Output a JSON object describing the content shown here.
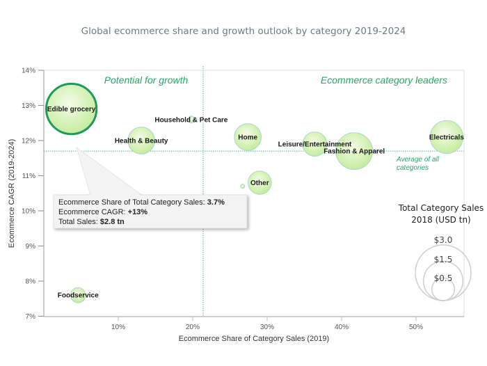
{
  "chart_data": {
    "type": "scatter",
    "subtype": "bubble",
    "title": "Global ecommerce share and growth outlook by category 2019-2024",
    "xlabel": "Ecommerce Share of Category Sales (2019)",
    "ylabel": "Ecommerce CAGR (2019-2024)",
    "xlim": [
      0,
      57
    ],
    "ylim": [
      7,
      14
    ],
    "x_ticks": [
      10,
      20,
      30,
      40,
      50
    ],
    "x_tick_labels": [
      "10%",
      "20%",
      "30%",
      "40%",
      "50%"
    ],
    "y_ticks": [
      7,
      8,
      9,
      10,
      11,
      12,
      13,
      14
    ],
    "y_tick_labels": [
      "7%",
      "8%",
      "9%",
      "10%",
      "11%",
      "12%",
      "13%",
      "14%"
    ],
    "grid": false,
    "reference_lines": {
      "x_average": 21.4,
      "y_average": 11.7,
      "y_average_label": [
        "Average of all",
        "categories"
      ]
    },
    "quadrant_labels": {
      "top_left": "Potential for growth",
      "top_right": "Ecommerce category leaders"
    },
    "series": [
      {
        "name": "Edible grocery",
        "x": 3.7,
        "y": 12.9,
        "size": 2.8,
        "highlighted": true,
        "label_pos": "center"
      },
      {
        "name": "Health & Beauty",
        "x": 13.1,
        "y": 12.0,
        "size": 0.8,
        "label_pos": "center"
      },
      {
        "name": "Household & Pet Care",
        "x": 19.8,
        "y": 12.6,
        "size": 0.05,
        "label_pos": "center-below"
      },
      {
        "name": "Home",
        "x": 27.4,
        "y": 12.1,
        "size": 0.8,
        "label_pos": "center"
      },
      {
        "name": "Other",
        "x": 29.0,
        "y": 10.8,
        "size": 0.6,
        "label_pos": "center"
      },
      {
        "name": "",
        "x": 26.7,
        "y": 10.7,
        "size": 0.02,
        "label_pos": "none"
      },
      {
        "name": "Leisure/Entertainment",
        "x": 36.4,
        "y": 11.9,
        "size": 0.65,
        "label_pos": "center"
      },
      {
        "name": "Fashion & Apparel",
        "x": 41.7,
        "y": 11.7,
        "size": 1.5,
        "label_pos": "center"
      },
      {
        "name": "Electricals",
        "x": 54.1,
        "y": 12.1,
        "size": 1.2,
        "label_pos": "center"
      },
      {
        "name": "Foodservice",
        "x": 4.6,
        "y": 7.6,
        "size": 0.25,
        "label_pos": "center"
      }
    ],
    "size_legend": {
      "title": [
        "Total Category Sales",
        "2018 (USD tn)"
      ],
      "values": [
        3.0,
        1.5,
        0.5
      ],
      "labels": [
        "$3.0",
        "$1.5",
        "$0.5"
      ]
    },
    "tooltip": {
      "target": "Edible grocery",
      "lines": [
        {
          "label": "Ecommerce Share of Total Category Sales: ",
          "value": "3.7%"
        },
        {
          "label": "Ecommerce CAGR: ",
          "value": "+13%"
        },
        {
          "label": "Total Sales: ",
          "value": "$2.8 tn"
        }
      ]
    },
    "colors": {
      "bubble_fill_center": "#f2fbe4",
      "bubble_fill_edge": "#c4ec9c",
      "bubble_stroke": "#a8d8d0",
      "highlight_stroke": "#1e9a5c",
      "reference_line": "#4cbf9a",
      "quadrant_text": "#2aa56a"
    }
  }
}
